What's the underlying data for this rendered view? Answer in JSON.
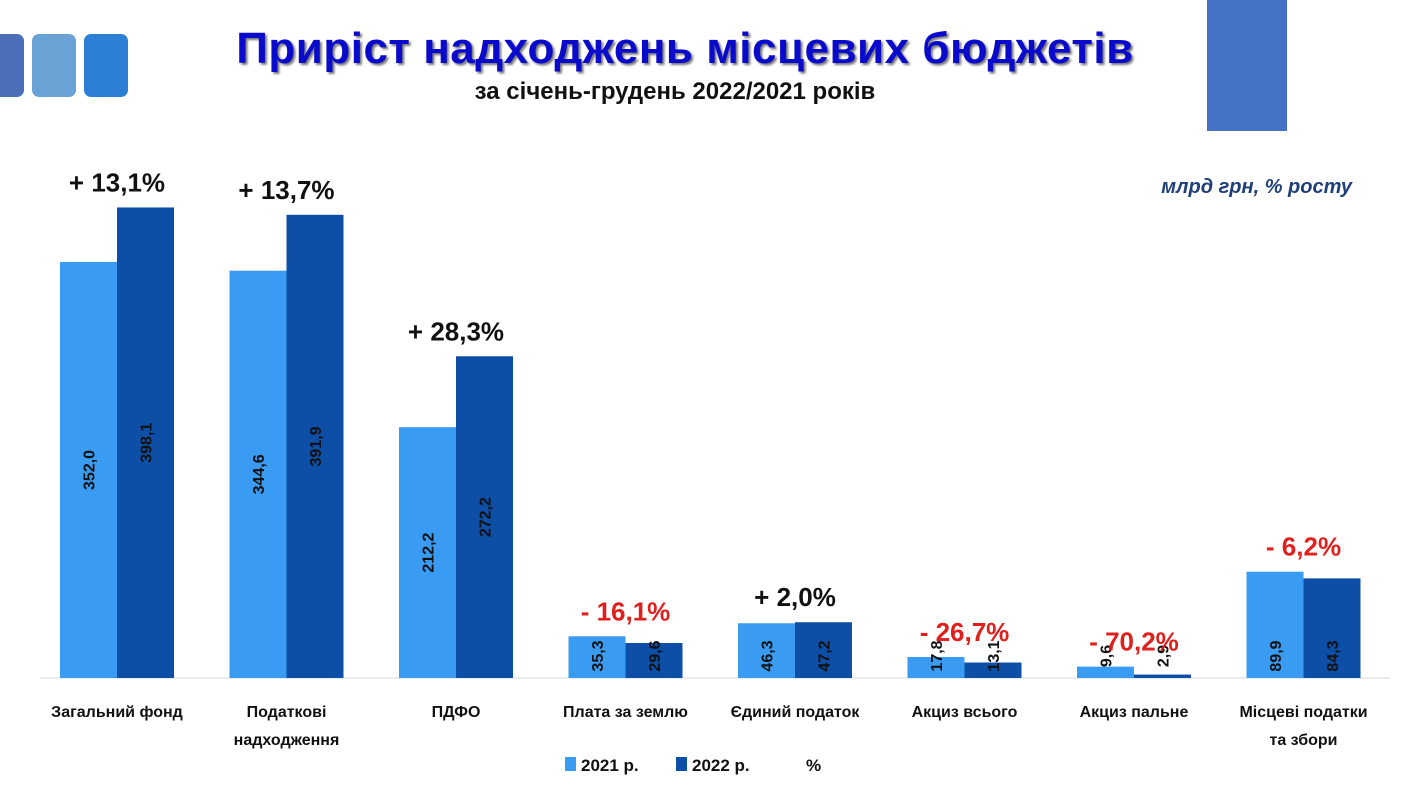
{
  "chart_data": {
    "type": "bar",
    "title": "Приріст надходжень місцевих бюджетів",
    "subtitle": "за січень-грудень 2022/2021 років",
    "units": "млрд грн, % росту",
    "categories": [
      [
        "Загальний фонд"
      ],
      [
        "Податкові",
        "надходження"
      ],
      [
        "ПДФО"
      ],
      [
        "Плата за землю"
      ],
      [
        "Єдиний податок"
      ],
      [
        "Акциз всього"
      ],
      [
        "Акциз пальне"
      ],
      [
        "Місцеві податки",
        "та збори"
      ]
    ],
    "series": [
      {
        "name": "2021 р.",
        "color": "#3a9bf2",
        "values": [
          352.0,
          344.6,
          212.2,
          35.3,
          46.3,
          17.8,
          9.6,
          89.9
        ],
        "labels": [
          "352,0",
          "344,6",
          "212,2",
          "35,3",
          "46,3",
          "17,8",
          "9,6",
          "89,9"
        ]
      },
      {
        "name": "2022 р.",
        "color": "#0d4fa6",
        "values": [
          398.1,
          391.9,
          272.2,
          29.6,
          47.2,
          13.1,
          2.9,
          84.3
        ],
        "labels": [
          "398,1",
          "391,9",
          "272,2",
          "29,6",
          "47,2",
          "13,1",
          "2,9",
          "84,3"
        ]
      }
    ],
    "percent_name": "%",
    "percent": [
      "+ 13,1%",
      "+ 13,7%",
      "+ 28,3%",
      "- 16,1%",
      "+ 2,0%",
      "- 26,7%",
      "- 70,2%",
      "- 6,2%"
    ],
    "percent_values": [
      13.1,
      13.7,
      28.3,
      -16.1,
      2.0,
      -26.7,
      -70.2,
      -6.2
    ],
    "positive_color": "#111111",
    "negative_color": "#e0201c",
    "ylim": [
      0,
      420
    ],
    "legend": "bottom"
  }
}
